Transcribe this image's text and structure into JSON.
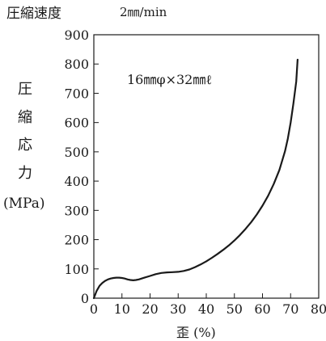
{
  "header": {
    "label": "圧縮速度",
    "value": "2㎜/min"
  },
  "chart_data": {
    "type": "line",
    "title": "",
    "ylabel_chars": [
      "圧",
      "縮",
      "応",
      "力"
    ],
    "ylabel_unit": "(MPa)",
    "xlabel": "歪 (%)",
    "xlim": [
      0,
      80
    ],
    "ylim": [
      0,
      900
    ],
    "xticks": [
      "0",
      "10",
      "20",
      "30",
      "40",
      "50",
      "60",
      "70",
      "80"
    ],
    "yticks": [
      "0",
      "100",
      "200",
      "300",
      "400",
      "500",
      "600",
      "700",
      "800",
      "900"
    ],
    "grid": false,
    "annotation": "16㎜φ×32㎜ℓ",
    "series": [
      {
        "x": [
          0,
          1,
          2,
          3,
          4,
          5,
          6,
          7,
          8,
          9,
          10,
          11,
          12,
          13,
          14,
          15,
          16,
          17,
          18,
          20,
          22,
          24,
          26,
          28,
          30,
          32,
          34,
          36,
          38,
          40,
          42,
          44,
          46,
          48,
          50,
          52,
          54,
          56,
          58,
          60,
          62,
          64,
          66,
          68,
          69,
          70,
          71,
          72,
          72.5
        ],
        "y": [
          0,
          25,
          42,
          52,
          59,
          64,
          67,
          69,
          70,
          70,
          69,
          67,
          64,
          62,
          61,
          62,
          64,
          67,
          70,
          76,
          82,
          86,
          88,
          89,
          90,
          93,
          98,
          106,
          115,
          126,
          138,
          151,
          165,
          180,
          197,
          216,
          237,
          260,
          286,
          316,
          350,
          390,
          438,
          502,
          545,
          600,
          665,
          740,
          815
        ]
      }
    ]
  }
}
